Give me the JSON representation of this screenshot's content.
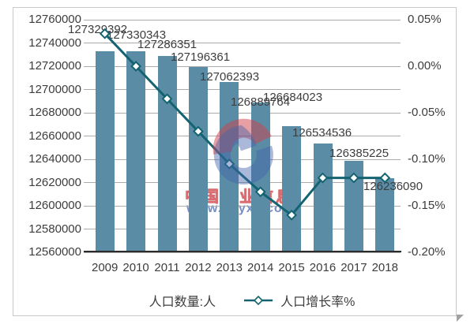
{
  "chart_data": {
    "type": "bar",
    "title": "",
    "categories": [
      "2009",
      "2010",
      "2011",
      "2012",
      "2013",
      "2014",
      "2015",
      "2016",
      "2017",
      "2018"
    ],
    "series": [
      {
        "name": "人口数量:人",
        "type": "bar",
        "axis": "left",
        "values": [
          127329392,
          127330343,
          127286351,
          127196361,
          127062393,
          126889764,
          126684023,
          126534536,
          126385225,
          126236090
        ],
        "labels": [
          "127329392",
          "127330343",
          "127286351",
          "127196361",
          "127062393",
          "126889764",
          "126684023",
          "126534536",
          "126385225",
          "126236090"
        ]
      },
      {
        "name": "人口增长率%",
        "type": "line",
        "axis": "right",
        "values": [
          0.035,
          0.0,
          -0.035,
          -0.07,
          -0.105,
          -0.135,
          -0.16,
          -0.12,
          -0.12,
          -0.12
        ],
        "note": "growth-rate % estimated from marker positions vs right axis"
      }
    ],
    "left_axis": {
      "ticks": [
        "12760000",
        "12740000",
        "12720000",
        "12700000",
        "12680000",
        "12660000",
        "12640000",
        "12620000",
        "12600000",
        "12580000",
        "12560000"
      ],
      "min": 12560000,
      "max": 12760000,
      "step": 20000
    },
    "right_axis": {
      "ticks": [
        "0.05%",
        "0.00%",
        "-0.05%",
        "-0.10%",
        "-0.15%",
        "-0.20%"
      ],
      "min": -0.2,
      "max": 0.05,
      "step": 0.05
    },
    "grid": true,
    "legend_position": "bottom"
  },
  "legend": {
    "bar_label": "人口数量:人",
    "line_label": "人口增长率%"
  },
  "watermark": {
    "brand": "中国产业信息",
    "url": "www.chyxx.com"
  },
  "colors": {
    "bar": "#5a8ca6",
    "line": "#136470",
    "marker_fill": "#ffffff",
    "grid": "#ababab",
    "axis_line": "#2b2b2b",
    "text": "#3d3d3d",
    "watermark_red": "#cf4048",
    "watermark_blue": "#4263ab",
    "border": "#c9c9c9"
  }
}
